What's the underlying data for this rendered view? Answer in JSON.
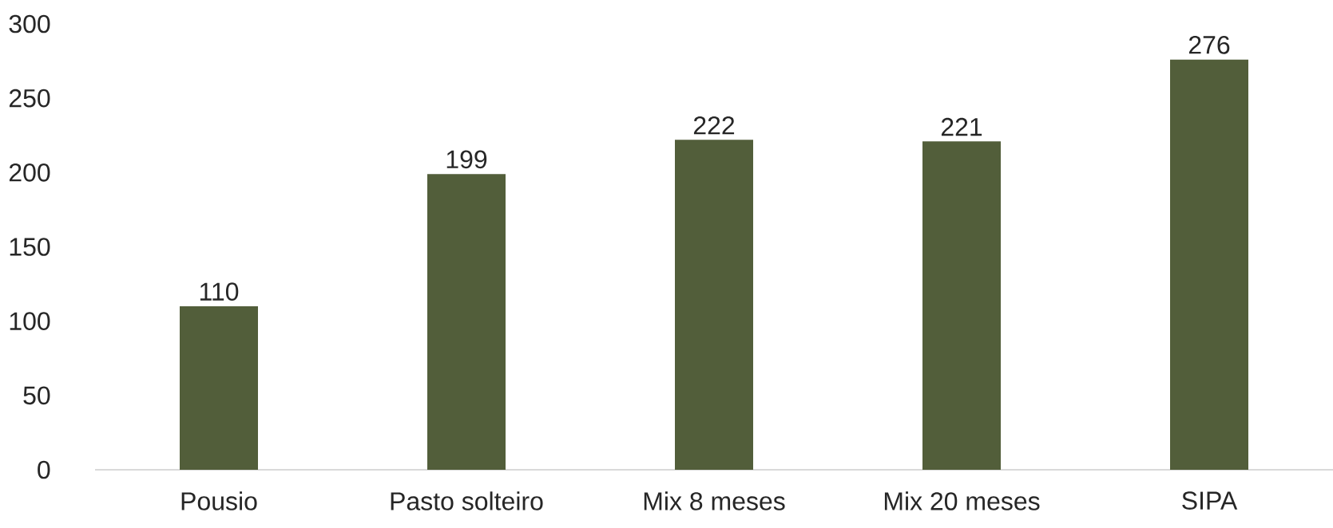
{
  "chart_data": {
    "type": "bar",
    "categories": [
      "Pousio",
      "Pasto solteiro",
      "Mix 8 meses",
      "Mix 20 meses",
      "SIPA"
    ],
    "values": [
      110,
      199,
      222,
      221,
      276
    ],
    "color": "#525e3a",
    "ylim": [
      0,
      300
    ],
    "yticks": [
      0,
      50,
      100,
      150,
      200,
      250,
      300
    ],
    "data_labels": true
  }
}
